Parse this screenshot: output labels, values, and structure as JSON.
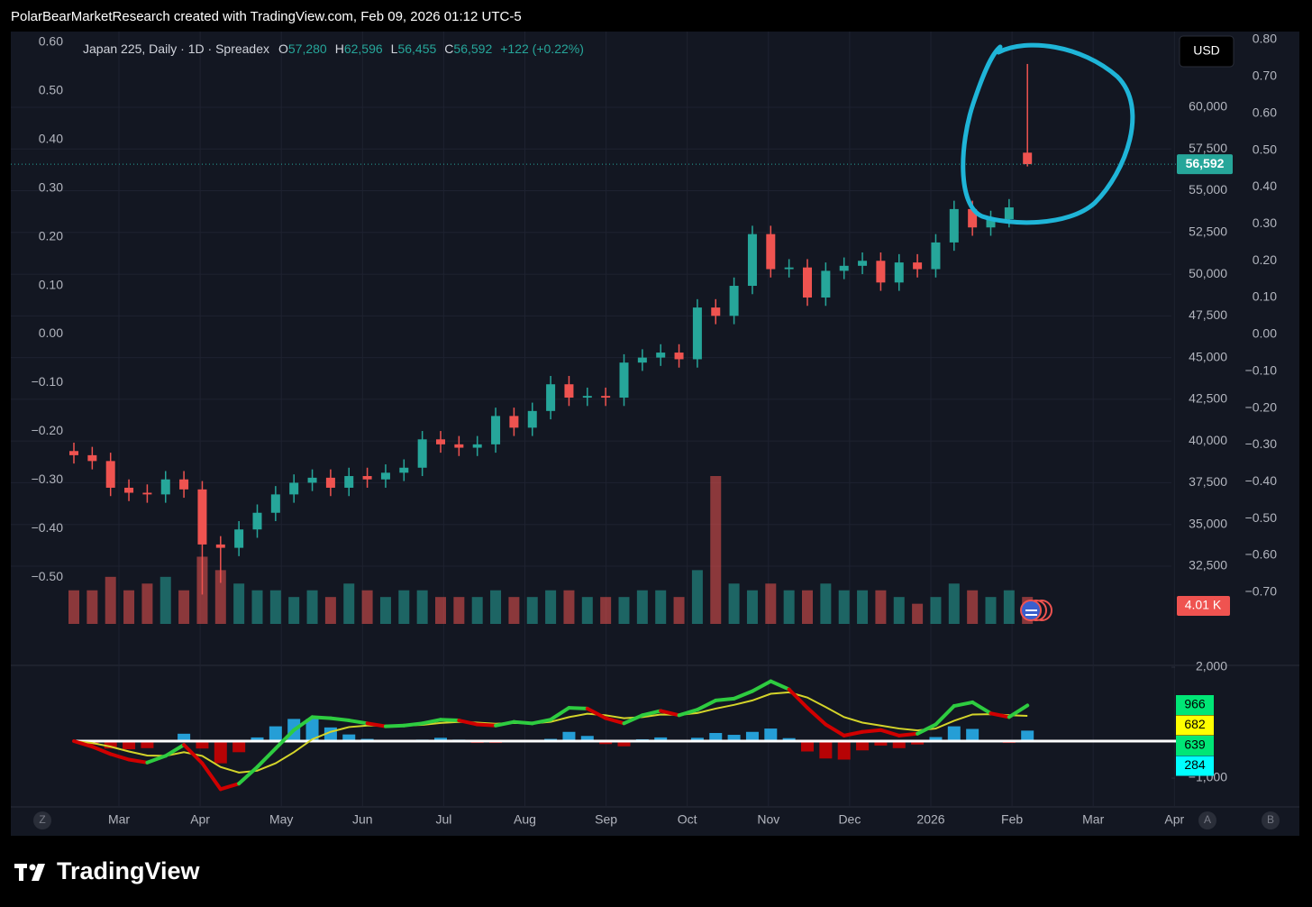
{
  "header": "PolarBearMarketResearch created with TradingView.com, Feb 09, 2026 01:12 UTC-5",
  "chart_data": {
    "type": "candlestick",
    "legend": {
      "symbol": "Japan 225, Daily · 1D · Spreadex",
      "ohlc": [
        {
          "key": "O",
          "value": 57280,
          "label": "57,280"
        },
        {
          "key": "H",
          "value": 62596,
          "label": "62,596"
        },
        {
          "key": "L",
          "value": 56455,
          "label": "56,455"
        },
        {
          "key": "C",
          "value": 56592,
          "label": "56,592"
        }
      ],
      "change": "+122 (+0.22%)"
    },
    "currency": "USD",
    "up_color": "#26a69a",
    "down_color": "#ef5350",
    "candles": {
      "open": [
        39400,
        39150,
        38800,
        37200,
        36900,
        36800,
        37700,
        37100,
        33800,
        33600,
        34700,
        35700,
        36800,
        37500,
        37800,
        37200,
        37900,
        37700,
        38100,
        38400,
        40100,
        39800,
        39600,
        39800,
        41500,
        40800,
        41800,
        43400,
        42600,
        42700,
        42600,
        44700,
        45000,
        45300,
        44900,
        48000,
        47500,
        49300,
        52400,
        50300,
        50400,
        48600,
        50200,
        50500,
        50800,
        49500,
        50700,
        50300,
        51900,
        53900,
        52800,
        53300,
        57280
      ],
      "high": [
        39900,
        39650,
        39300,
        37700,
        37400,
        38200,
        38200,
        37600,
        34300,
        35200,
        36200,
        37300,
        38000,
        38300,
        38300,
        38400,
        38400,
        38600,
        38900,
        40600,
        40600,
        40300,
        40300,
        42000,
        42000,
        42300,
        43900,
        43900,
        43200,
        43200,
        45200,
        45500,
        45800,
        45800,
        48500,
        48500,
        49800,
        52900,
        52900,
        50900,
        50900,
        50700,
        51000,
        51300,
        51300,
        51200,
        51200,
        52400,
        54400,
        54400,
        53800,
        54500,
        62596
      ],
      "low": [
        38650,
        38300,
        36700,
        36400,
        36300,
        36300,
        36600,
        30800,
        31500,
        33100,
        34200,
        35200,
        36300,
        37000,
        36700,
        36700,
        37200,
        37200,
        37600,
        37900,
        39300,
        39100,
        39100,
        39300,
        40300,
        40300,
        41300,
        42100,
        42100,
        42100,
        42100,
        44200,
        44500,
        44400,
        44400,
        47000,
        47000,
        48800,
        49800,
        49800,
        48100,
        48100,
        49700,
        50000,
        49000,
        49000,
        49800,
        49800,
        51400,
        52300,
        52300,
        52800,
        56455
      ],
      "close": [
        39150,
        38800,
        37200,
        36900,
        36800,
        37700,
        37100,
        33800,
        33600,
        34700,
        35700,
        36800,
        37500,
        37800,
        37200,
        37900,
        37700,
        38100,
        38400,
        40100,
        39800,
        39600,
        39800,
        41500,
        40800,
        41800,
        43400,
        42600,
        42700,
        42600,
        44700,
        45000,
        45300,
        44900,
        48000,
        47500,
        49300,
        52400,
        50300,
        50400,
        48600,
        50200,
        50500,
        50800,
        49500,
        50700,
        50300,
        51900,
        53900,
        52800,
        53300,
        54000,
        56592
      ]
    },
    "ylim": [
      29040,
      64538
    ],
    "yticks": [
      {
        "value": 60000,
        "label": "60,000"
      },
      {
        "value": 57500,
        "label": "57,500"
      },
      {
        "value": 55000,
        "label": "55,000"
      },
      {
        "value": 52500,
        "label": "52,500"
      },
      {
        "value": 50000,
        "label": "50,000"
      },
      {
        "value": 47500,
        "label": "47,500"
      },
      {
        "value": 45000,
        "label": "45,000"
      },
      {
        "value": 42500,
        "label": "42,500"
      },
      {
        "value": 40000,
        "label": "40,000"
      },
      {
        "value": 37500,
        "label": "37,500"
      },
      {
        "value": 35000,
        "label": "35,000"
      },
      {
        "value": 32500,
        "label": "32,500"
      }
    ],
    "last_price": {
      "value": 56592,
      "label": "56,592"
    },
    "left_axis": {
      "ylim": [
        -0.596,
        0.622
      ],
      "yticks": [
        {
          "value": 0.6,
          "label": "0.60"
        },
        {
          "value": 0.5,
          "label": "0.50"
        },
        {
          "value": 0.4,
          "label": "0.40"
        },
        {
          "value": 0.3,
          "label": "0.30"
        },
        {
          "value": 0.2,
          "label": "0.20"
        },
        {
          "value": 0.1,
          "label": "0.10"
        },
        {
          "value": 0,
          "label": "0.00"
        },
        {
          "value": -0.1,
          "label": "−0.10"
        },
        {
          "value": -0.2,
          "label": "−0.20"
        },
        {
          "value": -0.3,
          "label": "−0.30"
        },
        {
          "value": -0.4,
          "label": "−0.40"
        },
        {
          "value": -0.5,
          "label": "−0.50"
        }
      ]
    },
    "right_axis": {
      "ylim": [
        -0.786,
        0.822
      ],
      "yticks": [
        {
          "value": 0.8,
          "label": "0.80"
        },
        {
          "value": 0.7,
          "label": "0.70"
        },
        {
          "value": 0.6,
          "label": "0.60"
        },
        {
          "value": 0.5,
          "label": "0.50"
        },
        {
          "value": 0.4,
          "label": "0.40"
        },
        {
          "value": 0.3,
          "label": "0.30"
        },
        {
          "value": 0.2,
          "label": "0.20"
        },
        {
          "value": 0.1,
          "label": "0.10"
        },
        {
          "value": 0,
          "label": "0.00"
        },
        {
          "value": -0.1,
          "label": "−0.10"
        },
        {
          "value": -0.2,
          "label": "−0.20"
        },
        {
          "value": -0.3,
          "label": "−0.30"
        },
        {
          "value": -0.4,
          "label": "−0.40"
        },
        {
          "value": -0.5,
          "label": "−0.50"
        },
        {
          "value": -0.6,
          "label": "−0.60"
        },
        {
          "value": -0.7,
          "label": "−0.70"
        }
      ]
    },
    "volume": {
      "values": [
        5,
        5,
        7,
        5,
        6,
        7,
        5,
        10,
        8,
        6,
        5,
        5,
        4,
        5,
        4,
        6,
        5,
        4,
        5,
        5,
        4,
        4,
        4,
        5,
        4,
        4,
        5,
        5,
        4,
        4,
        4,
        5,
        5,
        4,
        8,
        22,
        6,
        5,
        6,
        5,
        5,
        6,
        5,
        5,
        5,
        4,
        3,
        4,
        6,
        5,
        4,
        5,
        4.01
      ],
      "ylim": [
        0,
        22
      ],
      "last": {
        "value": 4.01,
        "label": "4.01 K"
      }
    },
    "xticks": [
      "Mar",
      "Apr",
      "May",
      "Jun",
      "Jul",
      "Aug",
      "Sep",
      "Oct",
      "Nov",
      "Dec",
      "2026",
      "Feb",
      "Mar",
      "Apr"
    ],
    "macd": {
      "ylim": [
        -1780,
        2000
      ],
      "yticks": [
        {
          "value": 2000,
          "label": "2,000"
        },
        {
          "value": -1000,
          "label": "−1,000"
        }
      ],
      "macd": [
        0,
        -150,
        -350,
        -500,
        -580,
        -400,
        -100,
        -600,
        -1300,
        -1150,
        -700,
        -200,
        300,
        650,
        620,
        560,
        480,
        400,
        420,
        480,
        580,
        560,
        450,
        420,
        520,
        480,
        580,
        900,
        880,
        620,
        480,
        700,
        820,
        700,
        850,
        1100,
        1150,
        1350,
        1620,
        1400,
        900,
        450,
        150,
        250,
        300,
        150,
        200,
        450,
        950,
        1050,
        750,
        650,
        966
      ],
      "signal": [
        0,
        -50,
        -150,
        -280,
        -390,
        -400,
        -300,
        -400,
        -700,
        -850,
        -800,
        -600,
        -300,
        50,
        250,
        380,
        420,
        420,
        420,
        440,
        490,
        520,
        500,
        470,
        490,
        480,
        520,
        650,
        740,
        700,
        620,
        650,
        720,
        710,
        760,
        880,
        980,
        1100,
        1280,
        1320,
        1180,
        920,
        650,
        500,
        420,
        340,
        290,
        340,
        550,
        720,
        730,
        700,
        682
      ],
      "histogram": [
        0,
        -100,
        -200,
        -220,
        -190,
        0,
        200,
        -200,
        -600,
        -300,
        100,
        400,
        600,
        600,
        370,
        180,
        60,
        -20,
        0,
        40,
        90,
        40,
        -50,
        -50,
        30,
        0,
        60,
        250,
        140,
        -80,
        -140,
        50,
        100,
        -10,
        90,
        220,
        170,
        250,
        340,
        80,
        -280,
        -470,
        -500,
        -250,
        -120,
        -190,
        -90,
        110,
        400,
        330,
        20,
        -50,
        284
      ],
      "badges": [
        {
          "value": 966,
          "color": "#00e676"
        },
        {
          "value": 682,
          "color": "#ffff00"
        },
        {
          "value": 639,
          "color": "#00e676"
        },
        {
          "value": 284,
          "color": "#00ffff"
        }
      ]
    }
  },
  "buttons": [
    "Z",
    "A",
    "B"
  ],
  "footer": "TradingView"
}
